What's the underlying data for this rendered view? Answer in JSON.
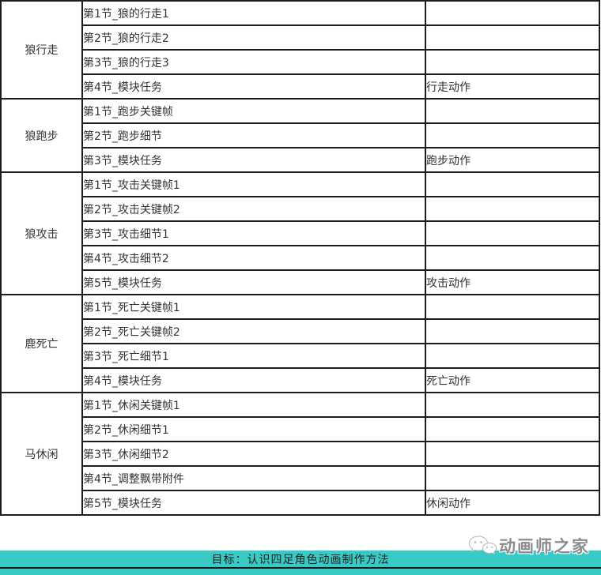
{
  "colors": {
    "highlight_red": "#e60000",
    "teal_bar": "#39cac5",
    "border": "#1d1d1d",
    "text": "#333333",
    "watermark_gray": "#8c8c8c"
  },
  "table": {
    "modules": [
      {
        "name": "狼行走",
        "rows": [
          {
            "lesson": "第1节_狼的行走1",
            "action": "",
            "highlight": false
          },
          {
            "lesson": "第2节_狼的行走2",
            "action": "",
            "highlight": false
          },
          {
            "lesson": "第3节_狼的行走3",
            "action": "",
            "highlight": false
          },
          {
            "lesson": "第4节_模块任务",
            "action": "行走动作",
            "highlight": true
          }
        ]
      },
      {
        "name": "狼跑步",
        "rows": [
          {
            "lesson": "第1节_跑步关键帧",
            "action": "",
            "highlight": false
          },
          {
            "lesson": "第2节_跑步细节",
            "action": "",
            "highlight": false
          },
          {
            "lesson": "第3节_模块任务",
            "action": "跑步动作",
            "highlight": true
          }
        ]
      },
      {
        "name": "狼攻击",
        "rows": [
          {
            "lesson": "第1节_攻击关键帧1",
            "action": "",
            "highlight": false
          },
          {
            "lesson": "第2节_攻击关键帧2",
            "action": "",
            "highlight": false
          },
          {
            "lesson": "第3节_攻击细节1",
            "action": "",
            "highlight": false
          },
          {
            "lesson": "第4节_攻击细节2",
            "action": "",
            "highlight": false
          },
          {
            "lesson": "第5节_模块任务",
            "action": "攻击动作",
            "highlight": true
          }
        ]
      },
      {
        "name": "鹿死亡",
        "rows": [
          {
            "lesson": "第1节_死亡关键帧1",
            "action": "",
            "highlight": false
          },
          {
            "lesson": "第2节_死亡关键帧2",
            "action": "",
            "highlight": false
          },
          {
            "lesson": "第3节_死亡细节1",
            "action": "",
            "highlight": false
          },
          {
            "lesson": "第4节_模块任务",
            "action": "死亡动作",
            "highlight": true
          }
        ]
      },
      {
        "name": "马休闲",
        "rows": [
          {
            "lesson": "第1节_休闲关键帧1",
            "action": "",
            "highlight": false
          },
          {
            "lesson": "第2节_休闲细节1",
            "action": "",
            "highlight": false
          },
          {
            "lesson": "第3节_休闲细节2",
            "action": "",
            "highlight": false
          },
          {
            "lesson": "第4节_调整飘带附件",
            "action": "",
            "highlight": false
          },
          {
            "lesson": "第5节_模块任务",
            "action": "休闲动作",
            "highlight": true
          }
        ]
      }
    ]
  },
  "footer": {
    "goal_text": "目标：认识四足角色动画制作方法"
  },
  "watermark": {
    "icon": "chat-bubbles-icon",
    "text": "动画师之家"
  }
}
